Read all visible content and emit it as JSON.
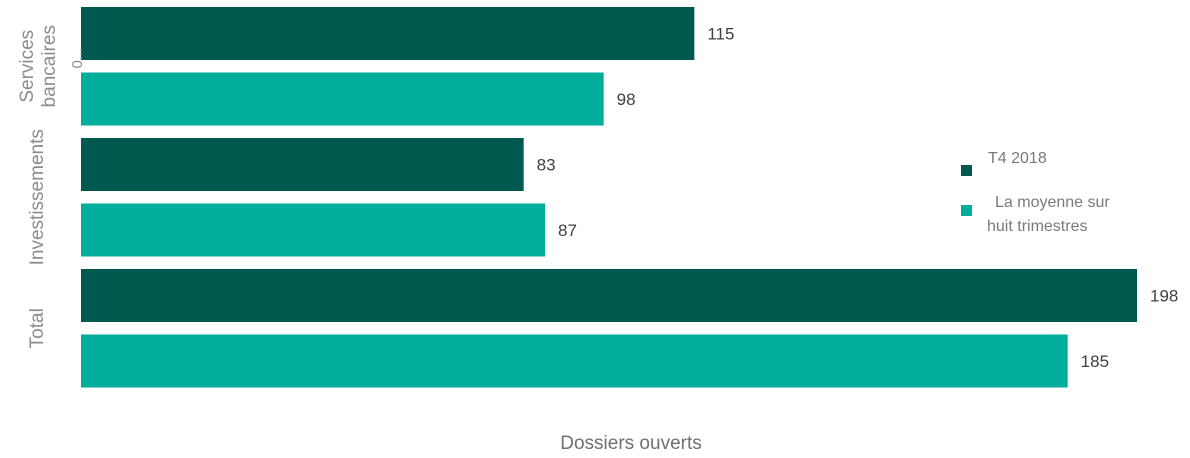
{
  "chart_data": {
    "type": "bar",
    "orientation": "horizontal",
    "categories": [
      "Services bancaires",
      "Investissements",
      "Total"
    ],
    "category_label_lines": [
      [
        "Services",
        "bancaires"
      ],
      [
        "Investissements"
      ],
      [
        "Total"
      ]
    ],
    "series": [
      {
        "name": "T4 2018",
        "values": [
          115,
          83,
          198
        ],
        "color": "#00594f"
      },
      {
        "name": "La moyenne sur huit trimestres",
        "values": [
          98,
          87,
          185
        ],
        "color": "#00ae9b"
      }
    ],
    "legend_lines": [
      [
        "T4 2018"
      ],
      [
        "La moyenne sur",
        "huit trimestres"
      ]
    ],
    "xlabel": "Dossiers ouverts",
    "ylabel": "",
    "xlim": [
      0,
      198
    ],
    "grid": false,
    "legend_position": "right",
    "stray_axis_text": "0..."
  }
}
